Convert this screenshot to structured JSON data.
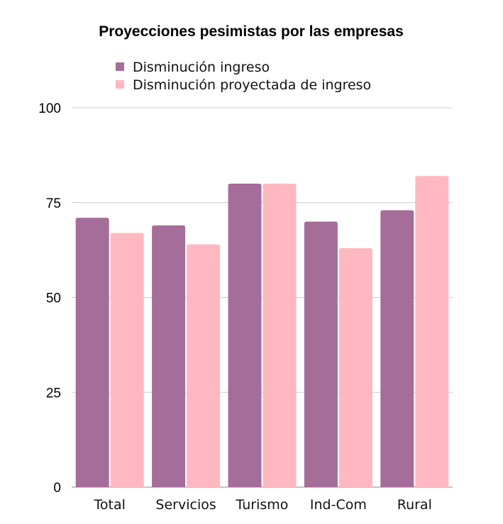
{
  "chart_data": {
    "type": "bar",
    "title": "Proyecciones pesimistas por las empresas",
    "xlabel": "",
    "ylabel": "",
    "categories": [
      "Total",
      "Servicios",
      "Turismo",
      "Ind-Com",
      "Rural"
    ],
    "series": [
      {
        "name": "Disminución ingreso",
        "color": "#a56d9a",
        "values": [
          71,
          69,
          80,
          70,
          73
        ]
      },
      {
        "name": "Disminución proyectada de ingreso",
        "color": "#ffb8bf",
        "values": [
          67,
          64,
          80,
          63,
          82
        ]
      }
    ],
    "ylim": [
      0,
      100
    ],
    "yticks": [
      "0",
      "25",
      "50",
      "75",
      "100"
    ],
    "grid": true,
    "legend_position": "top"
  }
}
